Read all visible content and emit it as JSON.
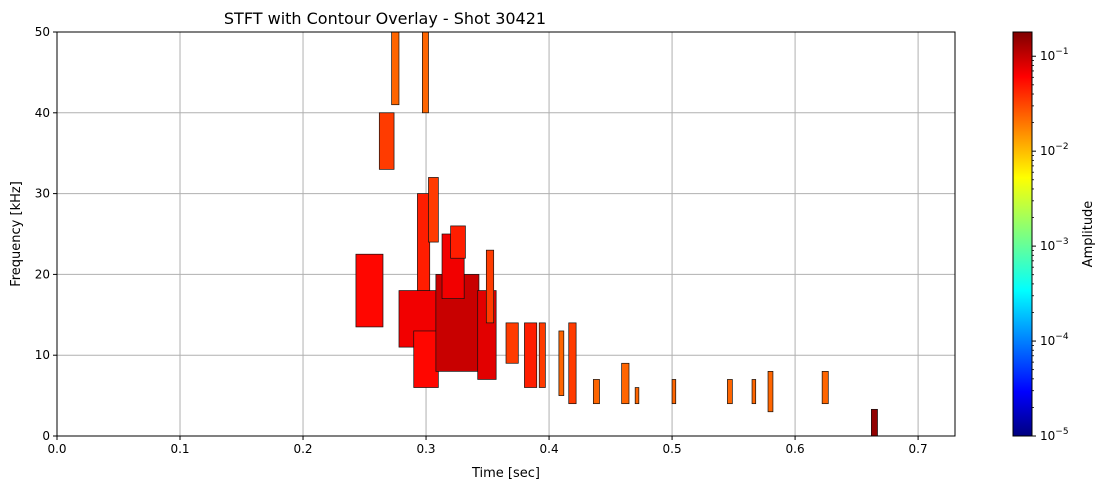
{
  "chart_data": [
    {
      "type": "heatmap",
      "title": "STFT with Contour Overlay - Shot 30421",
      "xlabel": "Time [sec]",
      "ylabel": "Frequency [kHz]",
      "xlim": [
        0.0,
        0.73
      ],
      "ylim": [
        0,
        50
      ],
      "x_ticks": [
        0.0,
        0.1,
        0.2,
        0.3,
        0.4,
        0.5,
        0.6,
        0.7
      ],
      "x_tick_labels": [
        "0.0",
        "0.1",
        "0.2",
        "0.3",
        "0.4",
        "0.5",
        "0.6",
        "0.7"
      ],
      "y_ticks": [
        0,
        10,
        20,
        30,
        40,
        50
      ],
      "y_tick_labels": [
        "0",
        "10",
        "20",
        "30",
        "40",
        "50"
      ],
      "grid": true,
      "regions": [
        {
          "t": 0.243,
          "f": 13.5,
          "dt": 0.022,
          "df": 9.0,
          "a": 0.05
        },
        {
          "t": 0.262,
          "f": 33.0,
          "dt": 0.012,
          "df": 7.0,
          "a": 0.03
        },
        {
          "t": 0.272,
          "f": 41.0,
          "dt": 0.006,
          "df": 9.0,
          "a": 0.02
        },
        {
          "t": 0.278,
          "f": 11.0,
          "dt": 0.03,
          "df": 7.0,
          "a": 0.06
        },
        {
          "t": 0.29,
          "f": 6.0,
          "dt": 0.02,
          "df": 7.0,
          "a": 0.05
        },
        {
          "t": 0.293,
          "f": 18.0,
          "dt": 0.01,
          "df": 12.0,
          "a": 0.04
        },
        {
          "t": 0.297,
          "f": 40.0,
          "dt": 0.005,
          "df": 10.0,
          "a": 0.02
        },
        {
          "t": 0.302,
          "f": 24.0,
          "dt": 0.008,
          "df": 8.0,
          "a": 0.03
        },
        {
          "t": 0.308,
          "f": 8.0,
          "dt": 0.035,
          "df": 12.0,
          "a": 0.09
        },
        {
          "t": 0.313,
          "f": 17.0,
          "dt": 0.018,
          "df": 8.0,
          "a": 0.06
        },
        {
          "t": 0.32,
          "f": 22.0,
          "dt": 0.012,
          "df": 4.0,
          "a": 0.04
        },
        {
          "t": 0.342,
          "f": 7.0,
          "dt": 0.015,
          "df": 11.0,
          "a": 0.07
        },
        {
          "t": 0.349,
          "f": 14.0,
          "dt": 0.006,
          "df": 9.0,
          "a": 0.03
        },
        {
          "t": 0.365,
          "f": 9.0,
          "dt": 0.01,
          "df": 5.0,
          "a": 0.03
        },
        {
          "t": 0.38,
          "f": 6.0,
          "dt": 0.01,
          "df": 8.0,
          "a": 0.04
        },
        {
          "t": 0.392,
          "f": 6.0,
          "dt": 0.005,
          "df": 8.0,
          "a": 0.03
        },
        {
          "t": 0.408,
          "f": 5.0,
          "dt": 0.004,
          "df": 8.0,
          "a": 0.02
        },
        {
          "t": 0.416,
          "f": 4.0,
          "dt": 0.006,
          "df": 10.0,
          "a": 0.03
        },
        {
          "t": 0.436,
          "f": 4.0,
          "dt": 0.005,
          "df": 3.0,
          "a": 0.02
        },
        {
          "t": 0.459,
          "f": 4.0,
          "dt": 0.006,
          "df": 5.0,
          "a": 0.02
        },
        {
          "t": 0.47,
          "f": 4.0,
          "dt": 0.003,
          "df": 2.0,
          "a": 0.02
        },
        {
          "t": 0.5,
          "f": 4.0,
          "dt": 0.003,
          "df": 3.0,
          "a": 0.02
        },
        {
          "t": 0.545,
          "f": 4.0,
          "dt": 0.004,
          "df": 3.0,
          "a": 0.02
        },
        {
          "t": 0.565,
          "f": 4.0,
          "dt": 0.003,
          "df": 3.0,
          "a": 0.02
        },
        {
          "t": 0.578,
          "f": 3.0,
          "dt": 0.004,
          "df": 5.0,
          "a": 0.02
        },
        {
          "t": 0.622,
          "f": 4.0,
          "dt": 0.005,
          "df": 4.0,
          "a": 0.02
        },
        {
          "t": 0.662,
          "f": 0.0,
          "dt": 0.005,
          "df": 3.3,
          "a": 0.15
        }
      ],
      "colorbar": {
        "label": "Amplitude",
        "scale": "log",
        "range": [
          1e-05,
          0.18
        ],
        "tick_exponents": [
          -5,
          -4,
          -3,
          -2,
          -1
        ],
        "tick_base": "10",
        "colormap": "jet"
      }
    }
  ],
  "colors": {
    "grid": "#b0b0b0",
    "axes": "#000000",
    "contour": "#111111"
  }
}
